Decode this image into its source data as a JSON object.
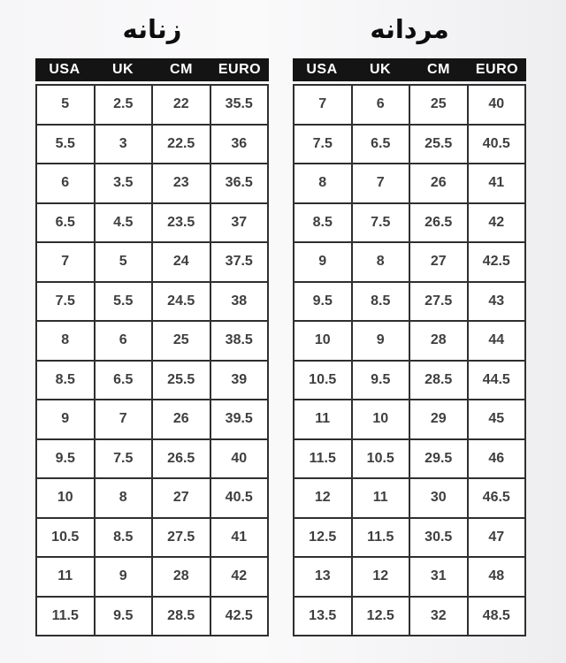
{
  "colors": {
    "header_bg": "#141414",
    "header_text": "#ffffff",
    "border": "#2f2f2f",
    "cell_bg": "#ffffff",
    "cell_text": "#3f3f3f",
    "title_text": "#0d0d0d"
  },
  "chart_data": [
    {
      "type": "table",
      "id": "women",
      "title": "زنانه",
      "columns": [
        "USA",
        "UK",
        "CM",
        "EURO"
      ],
      "rows": [
        [
          "5",
          "2.5",
          "22",
          "35.5"
        ],
        [
          "5.5",
          "3",
          "22.5",
          "36"
        ],
        [
          "6",
          "3.5",
          "23",
          "36.5"
        ],
        [
          "6.5",
          "4.5",
          "23.5",
          "37"
        ],
        [
          "7",
          "5",
          "24",
          "37.5"
        ],
        [
          "7.5",
          "5.5",
          "24.5",
          "38"
        ],
        [
          "8",
          "6",
          "25",
          "38.5"
        ],
        [
          "8.5",
          "6.5",
          "25.5",
          "39"
        ],
        [
          "9",
          "7",
          "26",
          "39.5"
        ],
        [
          "9.5",
          "7.5",
          "26.5",
          "40"
        ],
        [
          "10",
          "8",
          "27",
          "40.5"
        ],
        [
          "10.5",
          "8.5",
          "27.5",
          "41"
        ],
        [
          "11",
          "9",
          "28",
          "42"
        ],
        [
          "11.5",
          "9.5",
          "28.5",
          "42.5"
        ]
      ]
    },
    {
      "type": "table",
      "id": "men",
      "title": "مردانه",
      "columns": [
        "USA",
        "UK",
        "CM",
        "EURO"
      ],
      "rows": [
        [
          "7",
          "6",
          "25",
          "40"
        ],
        [
          "7.5",
          "6.5",
          "25.5",
          "40.5"
        ],
        [
          "8",
          "7",
          "26",
          "41"
        ],
        [
          "8.5",
          "7.5",
          "26.5",
          "42"
        ],
        [
          "9",
          "8",
          "27",
          "42.5"
        ],
        [
          "9.5",
          "8.5",
          "27.5",
          "43"
        ],
        [
          "10",
          "9",
          "28",
          "44"
        ],
        [
          "10.5",
          "9.5",
          "28.5",
          "44.5"
        ],
        [
          "11",
          "10",
          "29",
          "45"
        ],
        [
          "11.5",
          "10.5",
          "29.5",
          "46"
        ],
        [
          "12",
          "11",
          "30",
          "46.5"
        ],
        [
          "12.5",
          "11.5",
          "30.5",
          "47"
        ],
        [
          "13",
          "12",
          "31",
          "48"
        ],
        [
          "13.5",
          "12.5",
          "32",
          "48.5"
        ]
      ]
    }
  ]
}
